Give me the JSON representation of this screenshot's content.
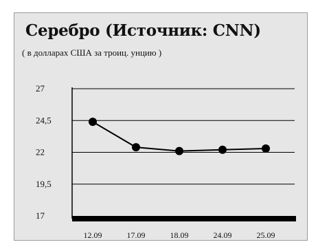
{
  "chart_data": {
    "type": "line",
    "title": "Серебро (Источник: CNN)",
    "subtitle": "( в долларах США за троиц. унцию )",
    "xlabel": "",
    "ylabel": "",
    "categories": [
      "12.09",
      "17.09",
      "18.09",
      "24.09",
      "25.09"
    ],
    "series": [
      {
        "values": [
          24.4,
          22.4,
          22.1,
          22.2,
          22.3
        ]
      }
    ],
    "y_ticks": [
      "27",
      "24,5",
      "22",
      "19,5",
      "17"
    ],
    "y_tick_values": [
      27,
      24.5,
      22,
      19.5,
      17
    ],
    "ylim": [
      17,
      27
    ],
    "grid": true,
    "legend": "none",
    "colors": {
      "background": "#e6e6e6",
      "line": "#000000",
      "marker": "#000000",
      "grid": "#000000"
    }
  }
}
